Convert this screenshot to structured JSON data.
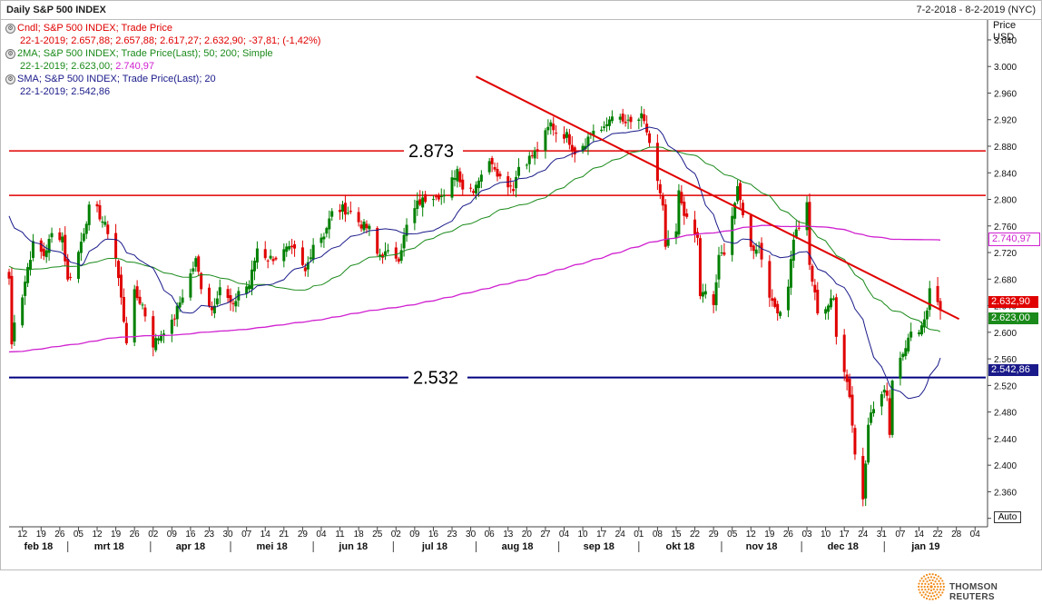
{
  "header": {
    "title": "Daily S&P 500 INDEX",
    "date_range": "7-2-2018 - 8-2-2019 (NYC)"
  },
  "legend": {
    "cndl_title": "Cndl; S&P 500 INDEX; Trade Price",
    "cndl_values": "22-1-2019; 2.657,88; 2.657,88; 2.617,27; 2.632,90; -37,81; (-1,42%)",
    "ma2_title": "2MA; S&P 500 INDEX; Trade Price(Last);  50; 200; Simple",
    "ma2_date": "22-1-2019; ",
    "ma2_v1": "2.623,00",
    "ma2_sep": "; ",
    "ma2_v2": "2.740,97",
    "sma_title": "SMA; S&P 500 INDEX; Trade Price(Last);  20",
    "sma_values": "22-1-2019;  2.542,86"
  },
  "price_axis": {
    "head1": "Price",
    "head2": "USD",
    "auto": "Auto"
  },
  "value_tags": {
    "close": "2.632,90",
    "ma50": "2.623,00",
    "ma200": "2.740,97",
    "sma20": "2.542,86"
  },
  "level_labels": {
    "upper": "2.873",
    "lower": "2.532"
  },
  "footer": {
    "brand": "THOMSON REUTERS"
  },
  "colors": {
    "candle_up": "#008000",
    "candle_down": "#e00000",
    "ma50": "#1a8a1a",
    "ma200": "#d020d0",
    "sma20": "#1a1a8a",
    "resistance": "#e00000",
    "support": "#000080"
  },
  "chart_data": {
    "type": "candlestick",
    "y_ticks": [
      "3.040",
      "3.000",
      "2.960",
      "2.920",
      "2.880",
      "2.840",
      "2.800",
      "2.760",
      "2.720",
      "2.680",
      "2.640",
      "2.600",
      "2.560",
      "2.520",
      "2.480",
      "2.440",
      "2.400",
      "2.360",
      "2.320"
    ],
    "y_tick_values": [
      3040,
      3000,
      2960,
      2920,
      2880,
      2840,
      2800,
      2760,
      2720,
      2680,
      2640,
      2600,
      2560,
      2520,
      2480,
      2440,
      2400,
      2360,
      2320
    ],
    "ylim": [
      2310,
      3070
    ],
    "x_ticks": [
      "12",
      "19",
      "26",
      "05",
      "12",
      "19",
      "26",
      "02",
      "09",
      "16",
      "23",
      "30",
      "07",
      "14",
      "21",
      "29",
      "04",
      "11",
      "18",
      "25",
      "02",
      "09",
      "16",
      "23",
      "30",
      "06",
      "13",
      "20",
      "27",
      "04",
      "10",
      "17",
      "24",
      "01",
      "08",
      "15",
      "22",
      "29",
      "05",
      "12",
      "19",
      "26",
      "03",
      "10",
      "17",
      "24",
      "31",
      "07",
      "14",
      "22",
      "28",
      "04"
    ],
    "months": [
      "feb 18",
      "mrt 18",
      "apr 18",
      "mei 18",
      "jun 18",
      "jul 18",
      "aug 18",
      "sep 18",
      "okt 18",
      "nov 18",
      "dec 18",
      "jan 19"
    ],
    "horizontal_levels": [
      2873,
      2806,
      2532
    ],
    "trendline": {
      "from": [
        "01-08-2018",
        2985
      ],
      "to": [
        "29-01-2019",
        2620
      ]
    },
    "anchor_points": [
      [
        "07-02-2018",
        2681
      ],
      [
        "08-02-2018",
        2581
      ],
      [
        "09-02-2018",
        2620
      ],
      [
        "12-02-2018",
        2656
      ],
      [
        "14-02-2018",
        2698
      ],
      [
        "16-02-2018",
        2732
      ],
      [
        "20-02-2018",
        2716
      ],
      [
        "23-02-2018",
        2747
      ],
      [
        "27-02-2018",
        2744
      ],
      [
        "01-03-2018",
        2677
      ],
      [
        "05-03-2018",
        2720
      ],
      [
        "09-03-2018",
        2786
      ],
      [
        "12-03-2018",
        2783
      ],
      [
        "16-03-2018",
        2752
      ],
      [
        "19-03-2018",
        2712
      ],
      [
        "23-03-2018",
        2588
      ],
      [
        "26-03-2018",
        2658
      ],
      [
        "29-03-2018",
        2641
      ],
      [
        "02-04-2018",
        2582
      ],
      [
        "06-04-2018",
        2604
      ],
      [
        "09-04-2018",
        2613
      ],
      [
        "13-04-2018",
        2656
      ],
      [
        "18-04-2018",
        2708
      ],
      [
        "20-04-2018",
        2670
      ],
      [
        "24-04-2018",
        2634
      ],
      [
        "27-04-2018",
        2669
      ],
      [
        "02-05-2018",
        2636
      ],
      [
        "04-05-2018",
        2663
      ],
      [
        "08-05-2018",
        2671
      ],
      [
        "11-05-2018",
        2727
      ],
      [
        "15-05-2018",
        2711
      ],
      [
        "18-05-2018",
        2713
      ],
      [
        "22-05-2018",
        2724
      ],
      [
        "25-05-2018",
        2721
      ],
      [
        "29-05-2018",
        2690
      ],
      [
        "01-06-2018",
        2734
      ],
      [
        "05-06-2018",
        2748
      ],
      [
        "08-06-2018",
        2779
      ],
      [
        "12-06-2018",
        2786
      ],
      [
        "15-06-2018",
        2780
      ],
      [
        "19-06-2018",
        2762
      ],
      [
        "22-06-2018",
        2755
      ],
      [
        "25-06-2018",
        2717
      ],
      [
        "29-06-2018",
        2718
      ],
      [
        "03-07-2018",
        2713
      ],
      [
        "06-07-2018",
        2759
      ],
      [
        "10-07-2018",
        2793
      ],
      [
        "13-07-2018",
        2801
      ],
      [
        "17-07-2018",
        2809
      ],
      [
        "20-07-2018",
        2802
      ],
      [
        "25-07-2018",
        2846
      ],
      [
        "27-07-2018",
        2818
      ],
      [
        "31-07-2018",
        2816
      ],
      [
        "03-08-2018",
        2840
      ],
      [
        "07-08-2018",
        2858
      ],
      [
        "10-08-2018",
        2833
      ],
      [
        "15-08-2018",
        2818
      ],
      [
        "17-08-2018",
        2850
      ],
      [
        "21-08-2018",
        2862
      ],
      [
        "24-08-2018",
        2874
      ],
      [
        "29-08-2018",
        2914
      ],
      [
        "31-08-2018",
        2901
      ],
      [
        "04-09-2018",
        2896
      ],
      [
        "07-09-2018",
        2872
      ],
      [
        "11-09-2018",
        2887
      ],
      [
        "14-09-2018",
        2905
      ],
      [
        "18-09-2018",
        2904
      ],
      [
        "21-09-2018",
        2930
      ],
      [
        "25-09-2018",
        2915
      ],
      [
        "28-09-2018",
        2914
      ],
      [
        "02-10-2018",
        2923
      ],
      [
        "04-10-2018",
        2902
      ],
      [
        "05-10-2018",
        2885
      ],
      [
        "10-10-2018",
        2785
      ],
      [
        "11-10-2018",
        2728
      ],
      [
        "15-10-2018",
        2750
      ],
      [
        "16-10-2018",
        2809
      ],
      [
        "19-10-2018",
        2767
      ],
      [
        "23-10-2018",
        2740
      ],
      [
        "24-10-2018",
        2656
      ],
      [
        "26-10-2018",
        2658
      ],
      [
        "29-10-2018",
        2641
      ],
      [
        "31-10-2018",
        2711
      ],
      [
        "02-11-2018",
        2723
      ],
      [
        "07-11-2018",
        2813
      ],
      [
        "09-11-2018",
        2781
      ],
      [
        "12-11-2018",
        2726
      ],
      [
        "15-11-2018",
        2730
      ],
      [
        "20-11-2018",
        2641
      ],
      [
        "23-11-2018",
        2632
      ],
      [
        "26-11-2018",
        2673
      ],
      [
        "28-11-2018",
        2743
      ],
      [
        "30-11-2018",
        2760
      ],
      [
        "03-12-2018",
        2790
      ],
      [
        "04-12-2018",
        2700
      ],
      [
        "07-12-2018",
        2633
      ],
      [
        "10-12-2018",
        2637
      ],
      [
        "13-12-2018",
        2650
      ],
      [
        "14-12-2018",
        2599
      ],
      [
        "17-12-2018",
        2545
      ],
      [
        "19-12-2018",
        2506
      ],
      [
        "21-12-2018",
        2416
      ],
      [
        "24-12-2018",
        2351
      ],
      [
        "26-12-2018",
        2467
      ],
      [
        "28-12-2018",
        2485
      ],
      [
        "31-12-2018",
        2506
      ],
      [
        "02-01-2019",
        2510
      ],
      [
        "03-01-2019",
        2447
      ],
      [
        "04-01-2019",
        2531
      ],
      [
        "08-01-2019",
        2574
      ],
      [
        "11-01-2019",
        2596
      ],
      [
        "15-01-2019",
        2610
      ],
      [
        "17-01-2019",
        2635
      ],
      [
        "18-01-2019",
        2670
      ],
      [
        "22-01-2019",
        2633
      ]
    ]
  }
}
